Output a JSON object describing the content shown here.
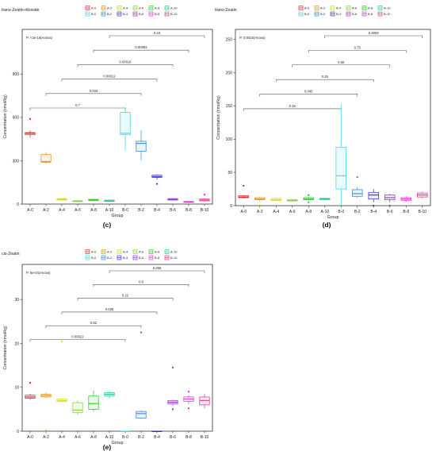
{
  "chart_data": [
    {
      "type": "box",
      "panel_label": "(c)",
      "title": "trans-Zeatin-riboside",
      "annotation": "P: <2e-16(Anova)",
      "xlabel": "Group",
      "ylabel": "Concentration (nmol/kg)",
      "ylim": [
        0,
        1210
      ],
      "yticks": [
        0,
        300,
        600,
        900
      ],
      "groups": [
        "A-0",
        "A-2",
        "A-4",
        "A-6",
        "A-8",
        "A-10",
        "B-0",
        "B-2",
        "B-4",
        "B-6",
        "B-8",
        "B-10"
      ],
      "boxes": [
        {
          "group": "A-0",
          "q1": 480,
          "median": 490,
          "q3": 495,
          "lo": 460,
          "hi": 510,
          "outliers": [
            590
          ]
        },
        {
          "group": "A-2",
          "q1": 290,
          "median": 295,
          "q3": 345,
          "lo": 280,
          "hi": 360,
          "outliers": []
        },
        {
          "group": "A-4",
          "q1": 28,
          "median": 33,
          "q3": 38,
          "lo": 25,
          "hi": 40,
          "outliers": []
        },
        {
          "group": "A-6",
          "q1": 17,
          "median": 20,
          "q3": 23,
          "lo": 15,
          "hi": 25,
          "outliers": []
        },
        {
          "group": "A-8",
          "q1": 25,
          "median": 28,
          "q3": 33,
          "lo": 22,
          "hi": 35,
          "outliers": []
        },
        {
          "group": "A-10",
          "q1": 18,
          "median": 22,
          "q3": 28,
          "lo": 15,
          "hi": 30,
          "outliers": []
        },
        {
          "group": "B-0",
          "q1": 480,
          "median": 490,
          "q3": 635,
          "lo": 370,
          "hi": 670,
          "outliers": []
        },
        {
          "group": "B-2",
          "q1": 365,
          "median": 420,
          "q3": 435,
          "lo": 305,
          "hi": 510,
          "outliers": []
        },
        {
          "group": "B-4",
          "q1": 185,
          "median": 190,
          "q3": 200,
          "lo": 170,
          "hi": 205,
          "outliers": [
            140
          ]
        },
        {
          "group": "B-6",
          "q1": 28,
          "median": 32,
          "q3": 38,
          "lo": 25,
          "hi": 42,
          "outliers": []
        },
        {
          "group": "B-8",
          "q1": 12,
          "median": 15,
          "q3": 18,
          "lo": 10,
          "hi": 20,
          "outliers": []
        },
        {
          "group": "B-10",
          "q1": 22,
          "median": 28,
          "q3": 35,
          "lo": 15,
          "hi": 40,
          "outliers": [
            65
          ]
        }
      ],
      "comparisons": [
        {
          "from": "A-0",
          "to": "B-0",
          "p": "0.7"
        },
        {
          "from": "A-2",
          "to": "B-2",
          "p": "0.033"
        },
        {
          "from": "A-4",
          "to": "B-4",
          "p": "0.00012"
        },
        {
          "from": "A-6",
          "to": "B-6",
          "p": "0.00016"
        },
        {
          "from": "A-8",
          "to": "B-8",
          "p": "0.00092"
        },
        {
          "from": "A-10",
          "to": "B-10",
          "p": "0.19"
        }
      ]
    },
    {
      "type": "box",
      "panel_label": "(d)",
      "title": "trans-Zeatin",
      "annotation": "P: 0.0015(Anova)",
      "xlabel": "Group",
      "ylabel": "Concentration (nmol/kg)",
      "ylim": [
        0,
        265
      ],
      "yticks": [
        0,
        50,
        100,
        150,
        200,
        250
      ],
      "groups": [
        "A-0",
        "A-2",
        "A-4",
        "A-6",
        "A-8",
        "A-10",
        "B-0",
        "B-2",
        "B-4",
        "B-6",
        "B-8",
        "B-10"
      ],
      "boxes": [
        {
          "group": "A-0",
          "q1": 12,
          "median": 13,
          "q3": 15,
          "lo": 11,
          "hi": 16,
          "outliers": [
            30
          ]
        },
        {
          "group": "A-2",
          "q1": 9,
          "median": 10,
          "q3": 12,
          "lo": 7,
          "hi": 13,
          "outliers": [
            0
          ]
        },
        {
          "group": "A-4",
          "q1": 8,
          "median": 9,
          "q3": 11,
          "lo": 6,
          "hi": 12,
          "outliers": []
        },
        {
          "group": "A-6",
          "q1": 7,
          "median": 8,
          "q3": 9,
          "lo": 6,
          "hi": 10,
          "outliers": []
        },
        {
          "group": "A-8",
          "q1": 9,
          "median": 10,
          "q3": 12,
          "lo": 8,
          "hi": 13,
          "outliers": [
            5,
            16
          ]
        },
        {
          "group": "A-10",
          "q1": 9,
          "median": 10,
          "q3": 11,
          "lo": 8,
          "hi": 12,
          "outliers": []
        },
        {
          "group": "B-0",
          "q1": 25,
          "median": 45,
          "q3": 88,
          "lo": 0,
          "hi": 153,
          "outliers": []
        },
        {
          "group": "B-2",
          "q1": 14,
          "median": 18,
          "q3": 24,
          "lo": 12,
          "hi": 28,
          "outliers": [
            43
          ]
        },
        {
          "group": "B-4",
          "q1": 10,
          "median": 16,
          "q3": 20,
          "lo": 5,
          "hi": 25,
          "outliers": [
            0
          ]
        },
        {
          "group": "B-6",
          "q1": 9,
          "median": 12,
          "q3": 16,
          "lo": 5,
          "hi": 18,
          "outliers": [
            0
          ]
        },
        {
          "group": "B-8",
          "q1": 8,
          "median": 10,
          "q3": 12,
          "lo": 6,
          "hi": 14,
          "outliers": []
        },
        {
          "group": "B-10",
          "q1": 13,
          "median": 16,
          "q3": 19,
          "lo": 11,
          "hi": 21,
          "outliers": []
        }
      ],
      "comparisons": [
        {
          "from": "A-0",
          "to": "B-0",
          "p": "0.16"
        },
        {
          "from": "A-2",
          "to": "B-2",
          "p": "0.045"
        },
        {
          "from": "A-4",
          "to": "B-4",
          "p": "0.29"
        },
        {
          "from": "A-6",
          "to": "B-6",
          "p": "0.56"
        },
        {
          "from": "A-8",
          "to": "B-8",
          "p": "0.75"
        },
        {
          "from": "A-10",
          "to": "B-10",
          "p": "0.0059"
        }
      ]
    },
    {
      "type": "box",
      "panel_label": "(e)",
      "title": "cis-Zeatin",
      "annotation": "P: 8e-04(Anova)",
      "xlabel": "Group",
      "ylabel": "Concentration (nmol/kg)",
      "ylim": [
        0,
        38
      ],
      "yticks": [
        0,
        10,
        20,
        30
      ],
      "groups": [
        "A-0",
        "A-2",
        "A-4",
        "A-6",
        "A-8",
        "A-10",
        "B-0",
        "B-2",
        "B-4",
        "B-6",
        "B-8",
        "B-10"
      ],
      "boxes": [
        {
          "group": "A-0",
          "q1": 7.5,
          "median": 7.8,
          "q3": 8.2,
          "lo": 7.2,
          "hi": 8.5,
          "outliers": [
            11
          ]
        },
        {
          "group": "A-2",
          "q1": 7.8,
          "median": 8.1,
          "q3": 8.4,
          "lo": 7.6,
          "hi": 8.8,
          "outliers": [
            0.1
          ]
        },
        {
          "group": "A-4",
          "q1": 6.8,
          "median": 7.0,
          "q3": 7.3,
          "lo": 6.5,
          "hi": 7.5,
          "outliers": [
            20.5
          ]
        },
        {
          "group": "A-6",
          "q1": 4.2,
          "median": 4.8,
          "q3": 6.5,
          "lo": 3.8,
          "hi": 7.0,
          "outliers": []
        },
        {
          "group": "A-8",
          "q1": 5.0,
          "median": 6.3,
          "q3": 8.0,
          "lo": 4.5,
          "hi": 9.3,
          "outliers": []
        },
        {
          "group": "A-10",
          "q1": 8.0,
          "median": 8.4,
          "q3": 8.8,
          "lo": 7.5,
          "hi": 9.2,
          "outliers": []
        },
        {
          "group": "B-0",
          "q1": 0,
          "median": 0,
          "q3": 0,
          "lo": 0,
          "hi": 0,
          "outliers": []
        },
        {
          "group": "B-2",
          "q1": 3.0,
          "median": 4.0,
          "q3": 4.5,
          "lo": 2.8,
          "hi": 4.7,
          "outliers": [
            22.5
          ]
        },
        {
          "group": "B-4",
          "q1": 0,
          "median": 0,
          "q3": 0,
          "lo": 0,
          "hi": 0,
          "outliers": []
        },
        {
          "group": "B-6",
          "q1": 6.2,
          "median": 6.6,
          "q3": 7.0,
          "lo": 5.8,
          "hi": 7.2,
          "outliers": [
            5.0,
            14.5
          ]
        },
        {
          "group": "B-8",
          "q1": 6.8,
          "median": 7.3,
          "q3": 7.8,
          "lo": 6.2,
          "hi": 8.2,
          "outliers": [
            5.2,
            9.0
          ]
        },
        {
          "group": "B-10",
          "q1": 6.0,
          "median": 7.0,
          "q3": 7.8,
          "lo": 5.2,
          "hi": 8.5,
          "outliers": []
        }
      ],
      "comparisons": [
        {
          "from": "A-0",
          "to": "B-0",
          "p": "0.00022"
        },
        {
          "from": "A-2",
          "to": "B-2",
          "p": "0.82"
        },
        {
          "from": "A-4",
          "to": "B-4",
          "p": "0.028"
        },
        {
          "from": "A-6",
          "to": "B-6",
          "p": "0.22"
        },
        {
          "from": "A-8",
          "to": "B-8",
          "p": "0.6"
        },
        {
          "from": "A-10",
          "to": "B-10",
          "p": "0.055"
        }
      ]
    }
  ],
  "group_colors": {
    "A-0": "#e41a1c",
    "A-2": "#e08a12",
    "A-4": "#d6d61a",
    "A-6": "#7fd12a",
    "A-8": "#1fc41f",
    "A-10": "#1fc48e",
    "B-0": "#2fd5e6",
    "B-2": "#2f7fd0",
    "B-4": "#2a2ad0",
    "B-6": "#8a2ad6",
    "B-8": "#e02ad6",
    "B-10": "#e02a86"
  }
}
